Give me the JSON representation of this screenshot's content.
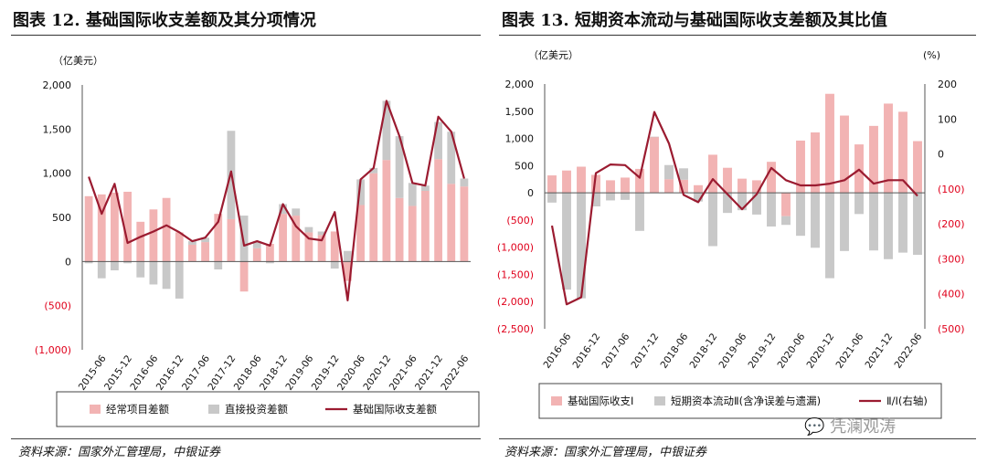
{
  "left": {
    "title": "图表 12. 基础国际收支差额及其分项情况",
    "source": "资料来源：国家外汇管理局，中银证券"
  },
  "right": {
    "title": "图表 13. 短期资本流动与基础国际收支差额及其比值",
    "source": "资料来源：国家外汇管理局，中银证券"
  },
  "watermark": "凭澜观涛",
  "colors": {
    "pink": "#f2b3b3",
    "gray": "#c8c8c8",
    "line": "#9b1b30",
    "negative": "#e0001b"
  },
  "chart_data": [
    {
      "type": "bar",
      "unit": "（亿美元）",
      "x_tick_labels": [
        "2015-06",
        "2015-12",
        "2016-06",
        "2016-12",
        "2017-06",
        "2017-12",
        "2018-06",
        "2018-12",
        "2019-06",
        "2019-12",
        "2020-06",
        "2020-12",
        "2021-06",
        "2021-12",
        "2022-06"
      ],
      "x": [
        "2015-03",
        "2015-06",
        "2015-09",
        "2015-12",
        "2016-03",
        "2016-06",
        "2016-09",
        "2016-12",
        "2017-03",
        "2017-06",
        "2017-09",
        "2017-12",
        "2018-03",
        "2018-06",
        "2018-09",
        "2018-12",
        "2019-03",
        "2019-06",
        "2019-09",
        "2019-12",
        "2020-03",
        "2020-06",
        "2020-09",
        "2020-12",
        "2021-03",
        "2021-06",
        "2021-09",
        "2021-12",
        "2022-03",
        "2022-06"
      ],
      "y_ticks": [
        2000,
        1500,
        1000,
        500,
        0,
        -500,
        -1000
      ],
      "y_tick_labels": [
        "2,000",
        "1,500",
        "1,000",
        "500",
        "0",
        "(500)",
        "(1,000)"
      ],
      "ylim": [
        -1000,
        2000
      ],
      "series": [
        {
          "name": "经常项目差额",
          "kind": "bar",
          "color": "#f2b3b3",
          "values": [
            740,
            760,
            780,
            790,
            450,
            590,
            720,
            330,
            190,
            220,
            540,
            480,
            -340,
            150,
            200,
            540,
            520,
            330,
            300,
            340,
            -220,
            640,
            1000,
            1150,
            720,
            630,
            800,
            1160,
            880,
            850
          ]
        },
        {
          "name": "直接投资差额",
          "kind": "bar",
          "color": "#c8c8c8",
          "values": [
            -20,
            -190,
            -100,
            -20,
            -180,
            -260,
            -310,
            -420,
            40,
            50,
            -90,
            1000,
            520,
            80,
            -20,
            110,
            80,
            60,
            40,
            -80,
            120,
            290,
            60,
            670,
            700,
            260,
            60,
            420,
            590,
            90
          ]
        },
        {
          "name": "基础国际收支差额",
          "kind": "line",
          "color": "#9b1b30",
          "values": [
            960,
            540,
            880,
            210,
            280,
            340,
            410,
            330,
            230,
            270,
            450,
            1020,
            180,
            230,
            180,
            650,
            400,
            260,
            240,
            560,
            -440,
            930,
            1060,
            1820,
            1420,
            890,
            860,
            1640,
            1470,
            940
          ]
        }
      ]
    },
    {
      "type": "bar",
      "unit_left": "（亿美元）",
      "unit_right": "(%)",
      "x_tick_labels": [
        "2016-06",
        "2016-12",
        "2017-06",
        "2017-12",
        "2018-06",
        "2018-12",
        "2019-06",
        "2019-12",
        "2020-06",
        "2020-12",
        "2021-06",
        "2021-12",
        "2022-06"
      ],
      "x": [
        "2016-03",
        "2016-06",
        "2016-09",
        "2016-12",
        "2017-03",
        "2017-06",
        "2017-09",
        "2017-12",
        "2018-03",
        "2018-06",
        "2018-09",
        "2018-12",
        "2019-03",
        "2019-06",
        "2019-09",
        "2019-12",
        "2020-03",
        "2020-06",
        "2020-09",
        "2020-12",
        "2021-03",
        "2021-06",
        "2021-09",
        "2021-12",
        "2022-03",
        "2022-06"
      ],
      "y_ticks": [
        2000,
        1500,
        1000,
        500,
        0,
        -500,
        -1000,
        -1500,
        -2000,
        -2500
      ],
      "y_tick_labels": [
        "2,000",
        "1,500",
        "1,000",
        "500",
        "0",
        "(500)",
        "(1,000)",
        "(1,500)",
        "(2,000)",
        "(2,500)"
      ],
      "ylim": [
        -2500,
        2000
      ],
      "y2_ticks": [
        200,
        100,
        0,
        -100,
        -200,
        -300,
        -400,
        -500
      ],
      "y2_tick_labels": [
        "200",
        "100",
        "0",
        "(100)",
        "(200)",
        "(300)",
        "(400)",
        "(500)"
      ],
      "y2lim": [
        -500,
        200
      ],
      "series": [
        {
          "name": "基础国际收支Ⅰ",
          "kind": "bar",
          "color": "#f2b3b3",
          "values": [
            320,
            410,
            480,
            330,
            230,
            280,
            440,
            1030,
            250,
            240,
            140,
            700,
            460,
            260,
            230,
            570,
            -430,
            960,
            1110,
            1820,
            1420,
            890,
            1230,
            1640,
            1490,
            950
          ]
        },
        {
          "name": "短期资本流动Ⅱ(含净误差与遗漏)",
          "kind": "bar",
          "color": "#c8c8c8",
          "values": [
            -180,
            -1780,
            -1940,
            -250,
            -140,
            -130,
            -700,
            0,
            260,
            210,
            -160,
            -980,
            -370,
            -320,
            -400,
            -620,
            -160,
            -790,
            -1010,
            -1570,
            -1070,
            -390,
            -1060,
            -1220,
            -1100,
            -1140
          ]
        },
        {
          "name": "Ⅱ/Ⅰ(右轴)",
          "kind": "line",
          "axis": "right",
          "color": "#9b1b30",
          "values": [
            -205,
            -430,
            -410,
            -55,
            -30,
            -32,
            -68,
            120,
            30,
            -117,
            -138,
            -72,
            -115,
            -158,
            -115,
            -40,
            -75,
            -90,
            -90,
            -85,
            -75,
            -45,
            -85,
            -75,
            -75,
            -120
          ]
        }
      ]
    }
  ]
}
